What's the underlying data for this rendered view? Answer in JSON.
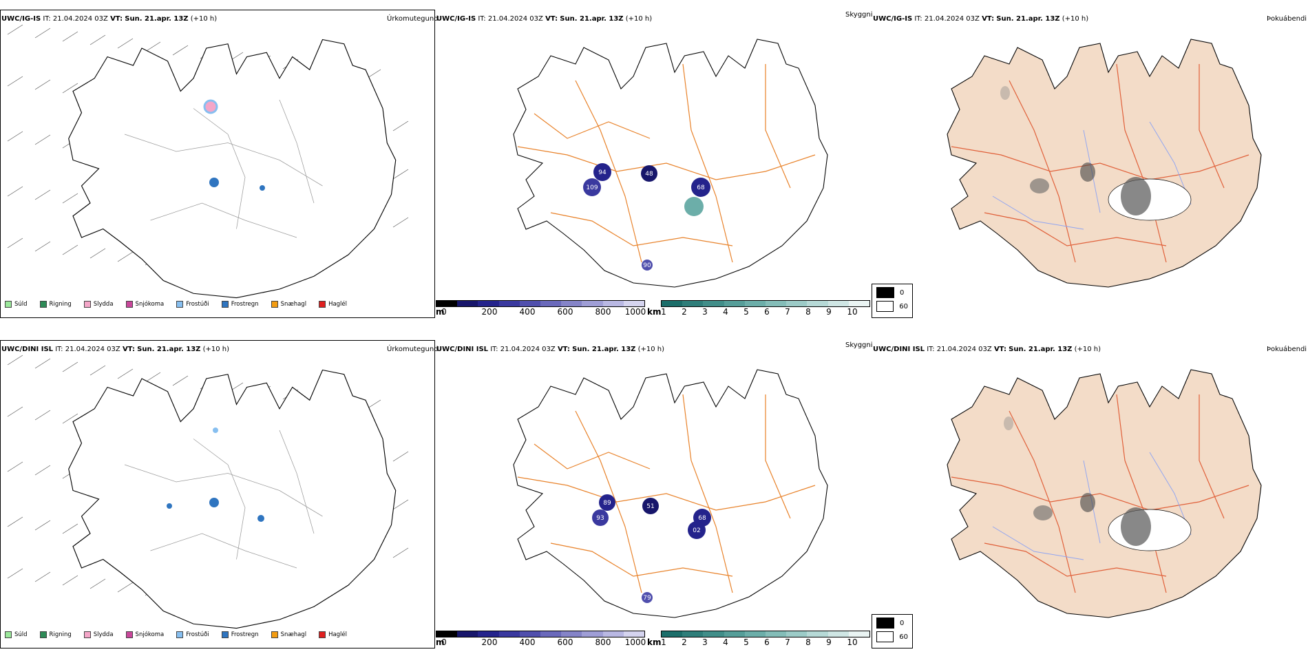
{
  "rows": [
    {
      "model": "UWC/IG-IS",
      "it_label": "IT:",
      "it": "21.04.2024 03Z",
      "vt_label": "VT:",
      "vt": "Sun. 21.apr. 13Z",
      "lead": "(+10 h)",
      "peaks": [
        "94",
        "48",
        "109",
        "68",
        "90"
      ]
    },
    {
      "model": "UWC/DINI ISL",
      "it_label": "IT:",
      "it": "21.04.2024 03Z",
      "vt_label": "VT:",
      "vt": "Sun. 21.apr. 13Z",
      "lead": "(+10 h)",
      "peaks": [
        "89",
        "51",
        "93",
        "68",
        "02",
        "79"
      ]
    }
  ],
  "titles": {
    "precip": "Úrkomutegund",
    "ceiling": "Skyggni",
    "fog": "Þokuábendi"
  },
  "precip_legend": [
    {
      "label": "Súld",
      "color": "#9be89b"
    },
    {
      "label": "Rigning",
      "color": "#2e8b57"
    },
    {
      "label": "Slydda",
      "color": "#f4a6c8"
    },
    {
      "label": "Snjókoma",
      "color": "#c8469a"
    },
    {
      "label": "Frostúði",
      "color": "#87bff0"
    },
    {
      "label": "Frostregn",
      "color": "#2f75c0"
    },
    {
      "label": "Snæhagl",
      "color": "#f39c12"
    },
    {
      "label": "Haglél",
      "color": "#e02020"
    }
  ],
  "ceiling_bar": {
    "unit": "m",
    "labels": [
      "0",
      "200",
      "400",
      "600",
      "800",
      "1000"
    ],
    "colors": [
      "#000000",
      "#17166b",
      "#24238c",
      "#3a399f",
      "#504fad",
      "#6a69bb",
      "#8584c8",
      "#9f9ed6",
      "#b9b8e3",
      "#d5d4ef"
    ]
  },
  "vis_bar": {
    "unit": "km",
    "labels": [
      "1",
      "2",
      "3",
      "4",
      "5",
      "6",
      "7",
      "8",
      "9",
      "10"
    ],
    "colors": [
      "#1c6e6a",
      "#2f7e7a",
      "#418e89",
      "#569e99",
      "#6caea9",
      "#84bdb8",
      "#9ccbc7",
      "#b6d9d6",
      "#cfe6e4",
      "#eaf4f3"
    ]
  },
  "fog_key": [
    {
      "label": "0",
      "color": "#000000"
    },
    {
      "label": "60",
      "color": "#ffffff"
    }
  ],
  "colors": {
    "coast": "#000000",
    "roads_gray": "#8c8c8c",
    "roads_orange": "#e8822a",
    "land_fog": "#f3dcc8",
    "rivers": "#8fa4f2"
  }
}
